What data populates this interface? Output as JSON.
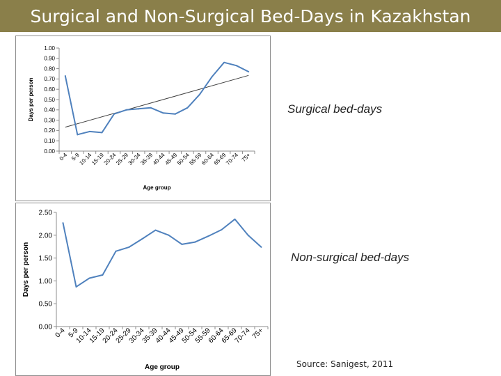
{
  "slide": {
    "title": "Surgical and Non-Surgical Bed-Days in Kazakhstan",
    "title_bg": "#8a7f4a",
    "label_surgical": "Surgical bed-days",
    "label_nonsurgical": "Non-surgical bed-days",
    "source": "Source: Sanigest, 2011"
  },
  "chart_data": [
    {
      "type": "line",
      "categories": [
        "0-4",
        "5-9",
        "10-14",
        "15-19",
        "20-24",
        "25-29",
        "30-34",
        "35-39",
        "40-44",
        "45-49",
        "50-54",
        "55-59",
        "60-64",
        "65-69",
        "70-74",
        "75+"
      ],
      "series": [
        {
          "values": [
            0.73,
            0.16,
            0.19,
            0.18,
            0.36,
            0.4,
            0.41,
            0.42,
            0.37,
            0.36,
            0.42,
            0.55,
            0.72,
            0.86,
            0.83,
            0.77
          ],
          "color": "#4f81bd"
        }
      ],
      "trendline": {
        "type": "linear",
        "color": "#404040"
      },
      "xlabel": "Age group",
      "ylabel": "Days per person",
      "ylim": [
        0,
        1.0
      ],
      "yticks": [
        "0.00",
        "0.10",
        "0.20",
        "0.30",
        "0.40",
        "0.50",
        "0.60",
        "0.70",
        "0.80",
        "0.90",
        "1.00"
      ],
      "grid": false,
      "legend": "none"
    },
    {
      "type": "line",
      "categories": [
        "0-4",
        "5-9",
        "10-14",
        "15-19",
        "20-24",
        "25-29",
        "30-34",
        "35-39",
        "40-44",
        "45-49",
        "50-54",
        "55-59",
        "60-64",
        "65-69",
        "70-74",
        "75+"
      ],
      "series": [
        {
          "values": [
            2.27,
            0.87,
            1.06,
            1.13,
            1.65,
            1.74,
            1.92,
            2.11,
            2.0,
            1.8,
            1.85,
            1.98,
            2.12,
            2.35,
            2.0,
            1.74
          ],
          "color": "#4f81bd"
        }
      ],
      "xlabel": "Age group",
      "ylabel": "Days per person",
      "ylim": [
        0,
        2.5
      ],
      "yticks": [
        "0.00",
        "0.50",
        "1.00",
        "1.50",
        "2.00",
        "2.50"
      ],
      "grid": false,
      "legend": "none"
    }
  ]
}
